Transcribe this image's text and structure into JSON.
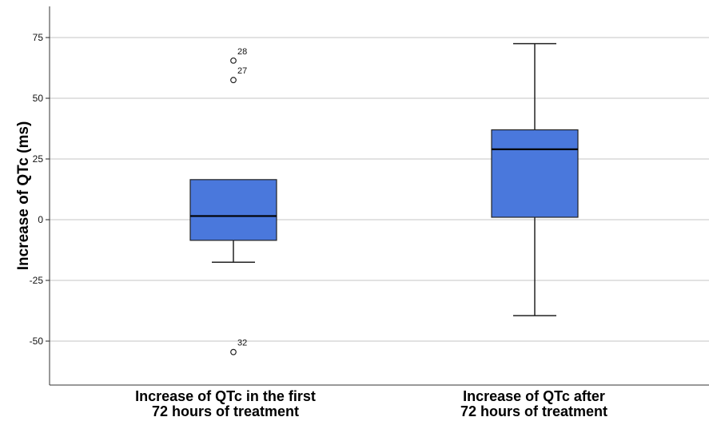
{
  "chart_data": {
    "type": "boxplot",
    "title": "",
    "xlabel": "",
    "ylabel": "Increase of QTc (ms)",
    "ylim": [
      -67,
      88
    ],
    "yticks": [
      75,
      50,
      25,
      0,
      -25,
      -50
    ],
    "yticklabels": [
      "75",
      "50",
      "25",
      "0",
      "-25",
      "-50"
    ],
    "grid": true,
    "box_color": "#4a78dc",
    "categories": [
      {
        "line1": "Increase of QTc in the first",
        "line2": "72 hours of treatment",
        "whisker_low": -17.5,
        "q1": -8.5,
        "median": 1.5,
        "q3": 16.5,
        "whisker_high": 16.5,
        "outliers": [
          {
            "label": "28",
            "value": 65.5
          },
          {
            "label": "27",
            "value": 57.5
          },
          {
            "label": "32",
            "value": -54.5
          }
        ]
      },
      {
        "line1": "Increase of QTc after",
        "line2": "72 hours of treatment",
        "whisker_low": -39.5,
        "q1": 1,
        "median": 29,
        "q3": 37,
        "whisker_high": 72.5,
        "outliers": []
      }
    ]
  }
}
